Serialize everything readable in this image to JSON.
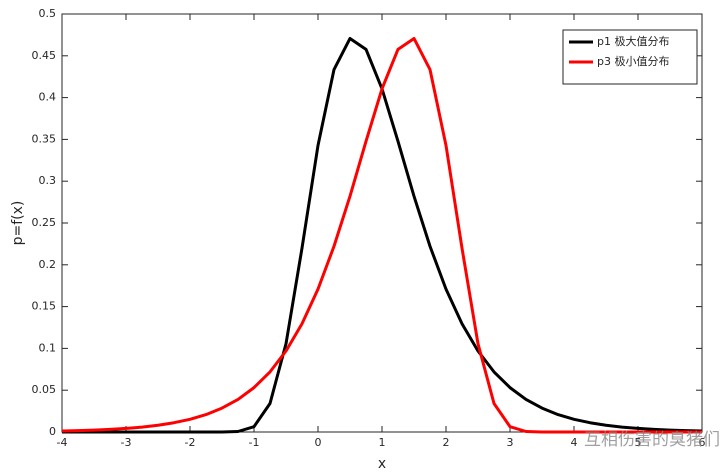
{
  "chart_data": {
    "type": "line",
    "x_label": "x",
    "y_label": "p=f(x)",
    "x": [
      -4,
      -3.75,
      -3.5,
      -3.25,
      -3,
      -2.75,
      -2.5,
      -2.25,
      -2,
      -1.75,
      -1.5,
      -1.25,
      -1,
      -0.75,
      -0.5,
      -0.25,
      0,
      0.25,
      0.5,
      0.75,
      1,
      1.25,
      1.5,
      1.75,
      2,
      2.25,
      2.5,
      2.75,
      3,
      3.25,
      3.5,
      3.75,
      4,
      4.25,
      4.5,
      4.75,
      5,
      5.25,
      5.5,
      5.75,
      6
    ],
    "series": [
      {
        "name": "p1 极大值分布",
        "color": "#000000",
        "values": [
          0,
          0,
          0,
          0,
          0,
          0,
          0,
          0,
          0,
          0,
          0,
          0.0006,
          0.0064,
          0.0341,
          0.1056,
          0.2199,
          0.3428,
          0.4336,
          0.4707,
          0.4577,
          0.4105,
          0.3477,
          0.2821,
          0.2222,
          0.1709,
          0.1295,
          0.0969,
          0.0719,
          0.0531,
          0.039,
          0.0286,
          0.0208,
          0.0152,
          0.0111,
          0.0081,
          0.0058,
          0.0043,
          0.0031,
          0.0023,
          0.0016,
          0.0012
        ]
      },
      {
        "name": "p3 极小值分布",
        "color": "#ff0000",
        "values": [
          0.0012,
          0.0016,
          0.0023,
          0.0031,
          0.0043,
          0.0058,
          0.0081,
          0.0111,
          0.0152,
          0.0208,
          0.0286,
          0.039,
          0.0531,
          0.0719,
          0.0969,
          0.1295,
          0.1709,
          0.2222,
          0.2821,
          0.3477,
          0.4105,
          0.4577,
          0.4707,
          0.4336,
          0.3428,
          0.2199,
          0.1056,
          0.0341,
          0.0064,
          0.0006,
          0,
          0,
          0,
          0,
          0,
          0,
          0,
          0,
          0,
          0,
          0
        ]
      }
    ],
    "xlim": [
      -4,
      6
    ],
    "xticks": [
      -4,
      -3,
      -2,
      -1,
      0,
      1,
      2,
      3,
      4,
      5,
      6
    ],
    "ylim": [
      0,
      0.5
    ],
    "yticks": [
      0,
      0.05,
      0.1,
      0.15,
      0.2,
      0.25,
      0.3,
      0.35,
      0.4,
      0.45,
      0.5
    ],
    "legend": "upper right",
    "watermark": "互相伤害的臭猪们"
  }
}
